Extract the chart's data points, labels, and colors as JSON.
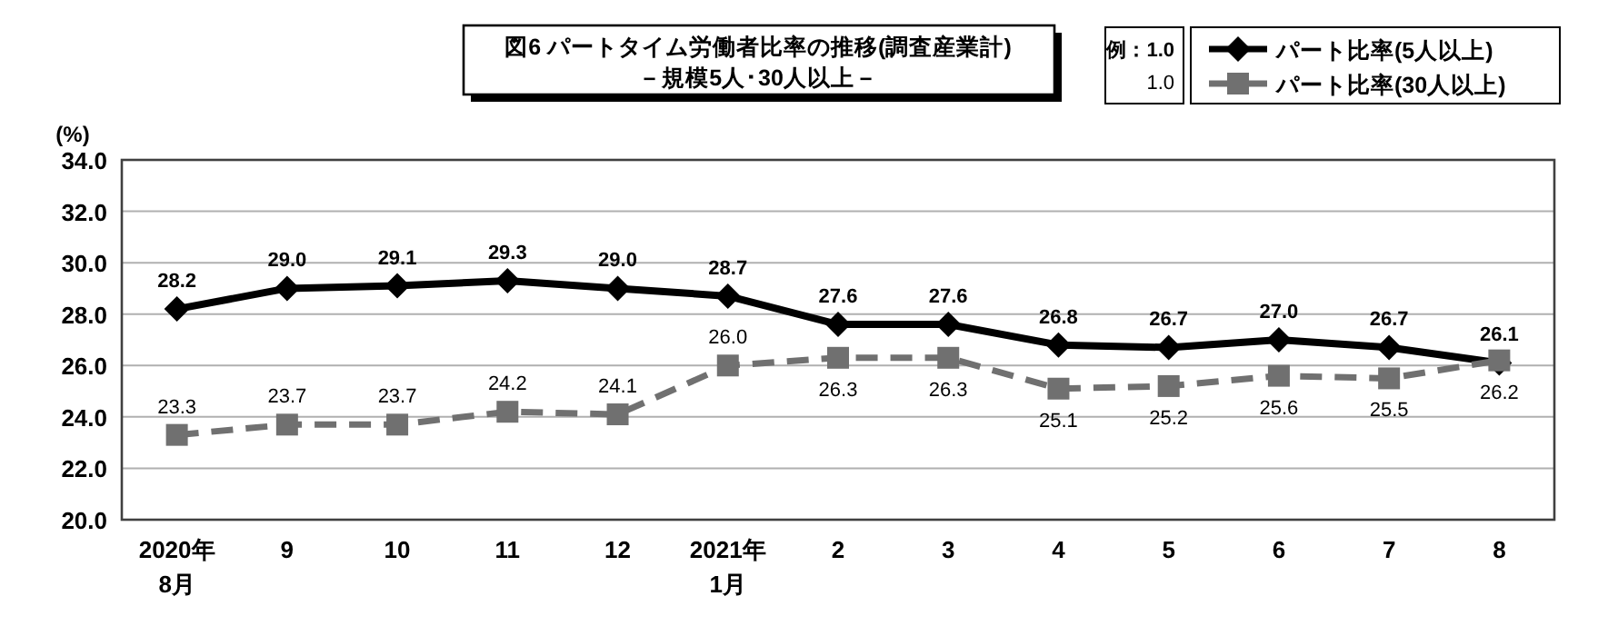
{
  "chart_data": {
    "type": "line",
    "title": "図6  パートタイム労働者比率の推移(調査産業計)",
    "subtitle": "－規模5人･30人以上－",
    "ylabel": "(%)",
    "annotations": [
      "例：1.0",
      "1.0"
    ],
    "categories": [
      "2020年\n8月",
      "9",
      "10",
      "11",
      "12",
      "2021年\n1月",
      "2",
      "3",
      "4",
      "5",
      "6",
      "7",
      "8"
    ],
    "series": [
      {
        "name": "パート比率(5人以上)",
        "color": "#000000",
        "marker": "diamond",
        "line_style": "solid",
        "values": [
          28.2,
          29.0,
          29.1,
          29.3,
          29.0,
          28.7,
          27.6,
          27.6,
          26.8,
          26.7,
          27.0,
          26.7,
          26.1
        ],
        "value_labels": [
          "28.2",
          "29.0",
          "29.1",
          "29.3",
          "29.0",
          "28.7",
          "27.6",
          "27.6",
          "26.8",
          "26.7",
          "27.0",
          "26.7",
          "26.1"
        ]
      },
      {
        "name": "パート比率(30人以上)",
        "color": "#707070",
        "marker": "square",
        "line_style": "dashed",
        "values": [
          23.3,
          23.7,
          23.7,
          24.2,
          24.1,
          26.0,
          26.3,
          26.3,
          25.1,
          25.2,
          25.6,
          25.5,
          26.2
        ],
        "value_labels": [
          "23.3",
          "23.7",
          "23.7",
          "24.2",
          "24.1",
          "26.0",
          "26.3",
          "26.3",
          "25.1",
          "25.2",
          "25.6",
          "25.5",
          "26.2"
        ]
      }
    ],
    "ylim": [
      20,
      34
    ],
    "yticks": [
      {
        "value": 20,
        "label": "20.0"
      },
      {
        "value": 22,
        "label": "22.0"
      },
      {
        "value": 24,
        "label": "24.0"
      },
      {
        "value": 26,
        "label": "26.0"
      },
      {
        "value": 28,
        "label": "28.0"
      },
      {
        "value": 30,
        "label": "30.0"
      },
      {
        "value": 32,
        "label": "32.0"
      },
      {
        "value": 34,
        "label": "34.0"
      }
    ],
    "grid": "y",
    "legend": "top right"
  }
}
